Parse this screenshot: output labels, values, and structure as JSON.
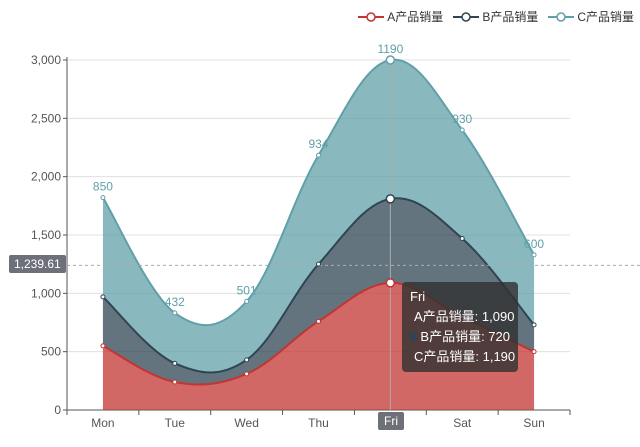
{
  "chart_data": {
    "type": "area",
    "stacked": true,
    "smooth": true,
    "categories": [
      "Mon",
      "Tue",
      "Wed",
      "Thu",
      "Fri",
      "Sat",
      "Sun"
    ],
    "series": [
      {
        "name": "A产品销量",
        "values": [
          550,
          240,
          310,
          760,
          1090,
          800,
          500
        ],
        "color": "#c23531",
        "labels": [
          "",
          "",
          "",
          "",
          "",
          "",
          ""
        ]
      },
      {
        "name": "B产品销量",
        "values": [
          420,
          160,
          120,
          490,
          720,
          670,
          230
        ],
        "color": "#2f4554",
        "labels": [
          "",
          "",
          "",
          "",
          "",
          "",
          ""
        ]
      },
      {
        "name": "C产品销量",
        "values": [
          850,
          432,
          501,
          934,
          1190,
          930,
          600
        ],
        "color": "#61a0a8",
        "labels": [
          "850",
          "432",
          "501",
          "934",
          "1190",
          "930",
          "600"
        ]
      }
    ],
    "ylim": [
      0,
      3000
    ],
    "yticks": [
      "0",
      "500",
      "1,000",
      "1,500",
      "2,000",
      "2,500",
      "3,000"
    ],
    "grid": true,
    "legend_position": "top-right"
  },
  "crosshair": {
    "y_label": "1,239.61",
    "y_value": 1239.61,
    "x_label": "Fri"
  },
  "tooltip": {
    "title": "Fri",
    "rows": [
      {
        "text": "A产品销量: 1,090",
        "color": "#c23531"
      },
      {
        "text": "B产品销量: 720",
        "color": "#2f4554"
      },
      {
        "text": "C产品销量: 1,190",
        "color": "#61a0a8"
      }
    ]
  }
}
